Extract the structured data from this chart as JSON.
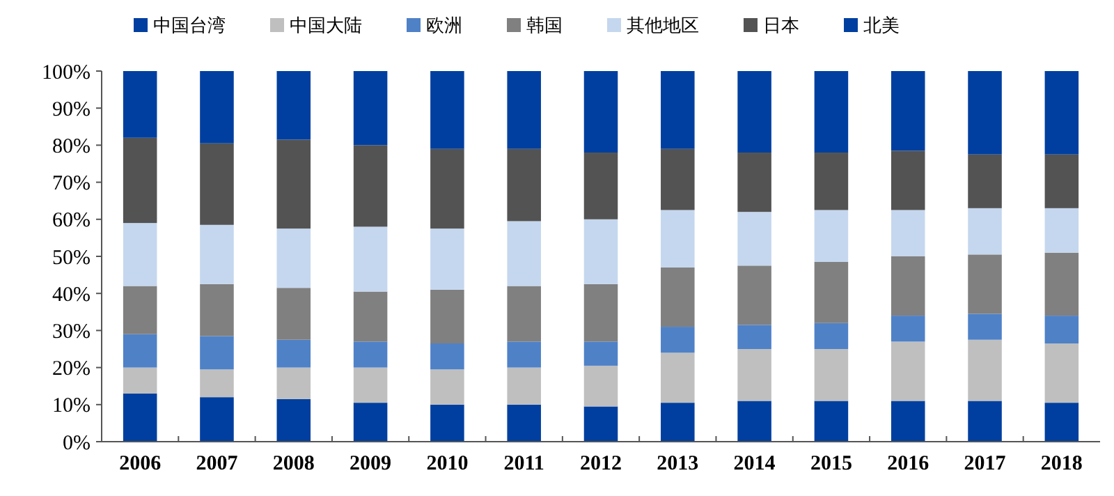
{
  "chart_data": {
    "type": "bar",
    "stacked": true,
    "categories": [
      "2006",
      "2007",
      "2008",
      "2009",
      "2010",
      "2011",
      "2012",
      "2013",
      "2014",
      "2015",
      "2016",
      "2017",
      "2018"
    ],
    "series": [
      {
        "name": "中国台湾",
        "color": "#003f9f",
        "values": [
          13,
          12,
          11.5,
          10.5,
          10,
          10,
          9.5,
          10.5,
          11,
          11,
          11,
          11,
          10.5
        ]
      },
      {
        "name": "中国大陆",
        "color": "#bfbfbf",
        "values": [
          7,
          7.5,
          8.5,
          9.5,
          9.5,
          10,
          11,
          13.5,
          14,
          14,
          16,
          16.5,
          16
        ]
      },
      {
        "name": "欧洲",
        "color": "#4f81c7",
        "values": [
          9,
          9,
          7.5,
          7,
          7,
          7,
          6.5,
          7,
          6.5,
          7,
          7,
          7,
          7.5
        ]
      },
      {
        "name": "韩国",
        "color": "#808080",
        "values": [
          13,
          14,
          14,
          13.5,
          14.5,
          15,
          15.5,
          16,
          16,
          16.5,
          16,
          16,
          17
        ]
      },
      {
        "name": "其他地区",
        "color": "#c5d7ee",
        "values": [
          17,
          16,
          16,
          17.5,
          16.5,
          17.5,
          17.5,
          15.5,
          14.5,
          14,
          12.5,
          12.5,
          12
        ]
      },
      {
        "name": "日本",
        "color": "#535353",
        "values": [
          23,
          22,
          24,
          22,
          21.5,
          19.5,
          18,
          16.5,
          16,
          15.5,
          16,
          14.5,
          14.5
        ]
      },
      {
        "name": "北美",
        "color": "#003f9f",
        "values": [
          18,
          19.5,
          18.5,
          20,
          21,
          21,
          22,
          21,
          22,
          22,
          21.5,
          22.5,
          22.5
        ]
      }
    ],
    "ylim": [
      0,
      100
    ],
    "yticks": [
      {
        "value": 0,
        "label": "0%"
      },
      {
        "value": 10,
        "label": "10%"
      },
      {
        "value": 20,
        "label": "20%"
      },
      {
        "value": 30,
        "label": "30%"
      },
      {
        "value": 40,
        "label": "40%"
      },
      {
        "value": 50,
        "label": "50%"
      },
      {
        "value": 60,
        "label": "60%"
      },
      {
        "value": 70,
        "label": "70%"
      },
      {
        "value": 80,
        "label": "80%"
      },
      {
        "value": 90,
        "label": "90%"
      },
      {
        "value": 100,
        "label": "100%"
      }
    ],
    "legend": "top",
    "grid": false
  }
}
